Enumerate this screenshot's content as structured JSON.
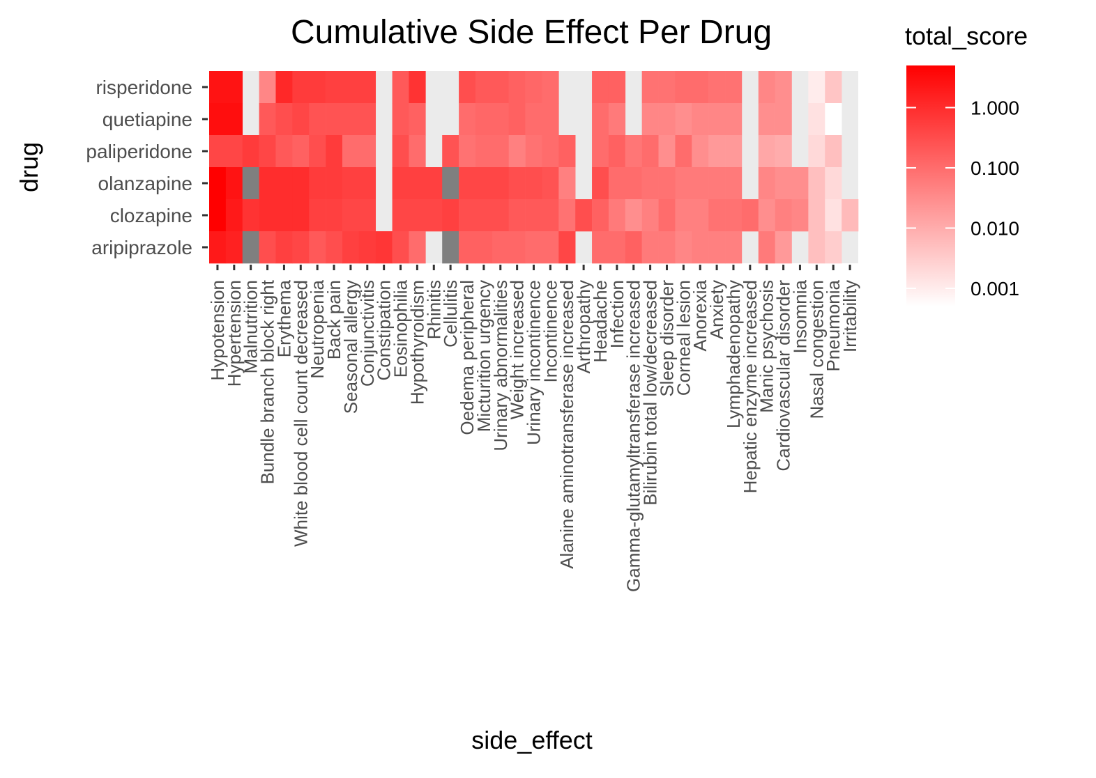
{
  "chart_data": {
    "type": "heatmap",
    "title": "Cumulative Side Effect Per Drug",
    "xlabel": "side_effect",
    "ylabel": "drug",
    "legend": {
      "title": "total_score",
      "scale": "log10",
      "domain": [
        0.0005,
        5
      ],
      "breaks": [
        1,
        0.1,
        0.01,
        0.001
      ],
      "labels": [
        "1.000",
        "0.100",
        "0.010",
        "0.001"
      ],
      "low_color": "#ffffff",
      "high_color": "#ff0000",
      "na_color": "#7f7f7f",
      "panel_background": "#ebebeb",
      "placement": "right"
    },
    "x": [
      "Hypotension",
      "Hypertension",
      "Malnutrition",
      "Bundle branch block right",
      "Erythema",
      "White blood cell count decreased",
      "Neutropenia",
      "Back pain",
      "Seasonal allergy",
      "Conjunctivitis",
      "Constipation",
      "Eosinophilia",
      "Hypothyroidism",
      "Rhinitis",
      "Cellulitis",
      "Oedema peripheral",
      "Micturition urgency",
      "Urinary abnormalities",
      "Weight increased",
      "Urinary incontinence",
      "Incontinence",
      "Alanine aminotransferase increased",
      "Arthropathy",
      "Headache",
      "Infection",
      "Gamma-glutamyltransferase increased",
      "Bilirubin total low/decreased",
      "Sleep disorder",
      "Corneal lesion",
      "Anorexia",
      "Anxiety",
      "Lymphadenopathy",
      "Hepatic enzyme increased",
      "Manic psychosis",
      "Cardiovascular disorder",
      "Insomnia",
      "Nasal congestion",
      "Pneumonia",
      "Irritability"
    ],
    "y": [
      "risperidone",
      "quetiapine",
      "paliperidone",
      "olanzapine",
      "clozapine",
      "aripiprazole"
    ],
    "values": [
      [
        2.5,
        2.5,
        null,
        0.04,
        1.2,
        0.6,
        0.6,
        0.5,
        0.5,
        0.5,
        null,
        0.2,
        0.8,
        null,
        null,
        0.3,
        0.2,
        0.2,
        0.15,
        0.12,
        0.1,
        null,
        null,
        0.15,
        0.15,
        null,
        0.08,
        0.08,
        0.1,
        0.1,
        0.08,
        0.08,
        null,
        0.04,
        0.03,
        null,
        0.001,
        0.004,
        null
      ],
      [
        3,
        3,
        null,
        0.2,
        0.3,
        0.4,
        0.25,
        0.25,
        0.25,
        0.25,
        null,
        0.2,
        0.15,
        null,
        null,
        0.1,
        0.12,
        0.12,
        0.15,
        0.1,
        0.1,
        null,
        null,
        0.1,
        0.06,
        null,
        0.04,
        0.04,
        0.03,
        0.04,
        0.04,
        0.04,
        null,
        0.03,
        0.03,
        null,
        0.0015,
        0.0004,
        null
      ],
      [
        0.4,
        0.4,
        0.6,
        0.4,
        0.2,
        0.15,
        0.3,
        0.6,
        0.1,
        0.1,
        null,
        0.3,
        0.1,
        null,
        0.25,
        0.08,
        0.1,
        0.1,
        0.05,
        0.08,
        0.1,
        0.15,
        null,
        0.1,
        0.15,
        0.07,
        0.1,
        0.03,
        0.1,
        0.03,
        0.02,
        0.02,
        null,
        0.012,
        0.01,
        null,
        0.002,
        0.005,
        null
      ],
      [
        5,
        2.5,
        "NA",
        1,
        1,
        1,
        0.6,
        0.6,
        0.5,
        0.5,
        null,
        0.5,
        0.5,
        0.5,
        "NA",
        0.4,
        0.4,
        0.4,
        0.3,
        0.3,
        0.25,
        0.05,
        null,
        0.3,
        0.1,
        0.1,
        0.08,
        0.08,
        0.06,
        0.06,
        0.06,
        0.06,
        null,
        0.04,
        0.03,
        0.03,
        0.005,
        0.002,
        null
      ],
      [
        5,
        2,
        0.8,
        1,
        1,
        1,
        0.5,
        0.5,
        0.4,
        0.4,
        null,
        0.4,
        0.4,
        0.4,
        0.5,
        0.3,
        0.3,
        0.3,
        0.2,
        0.2,
        0.2,
        0.08,
        0.3,
        0.15,
        0.06,
        0.03,
        0.05,
        0.1,
        0.05,
        0.05,
        0.08,
        0.08,
        0.1,
        0.03,
        0.05,
        0.04,
        0.005,
        0.0015,
        0.006
      ],
      [
        2,
        1.5,
        "NA",
        0.3,
        0.5,
        0.4,
        0.2,
        0.3,
        0.5,
        0.6,
        0.7,
        0.3,
        0.1,
        null,
        "NA",
        0.15,
        0.15,
        0.12,
        0.12,
        0.1,
        0.1,
        0.4,
        null,
        0.1,
        0.1,
        0.15,
        0.06,
        0.06,
        0.04,
        0.05,
        0.05,
        0.05,
        null,
        0.06,
        0.02,
        null,
        0.005,
        0.003,
        null
      ]
    ]
  }
}
